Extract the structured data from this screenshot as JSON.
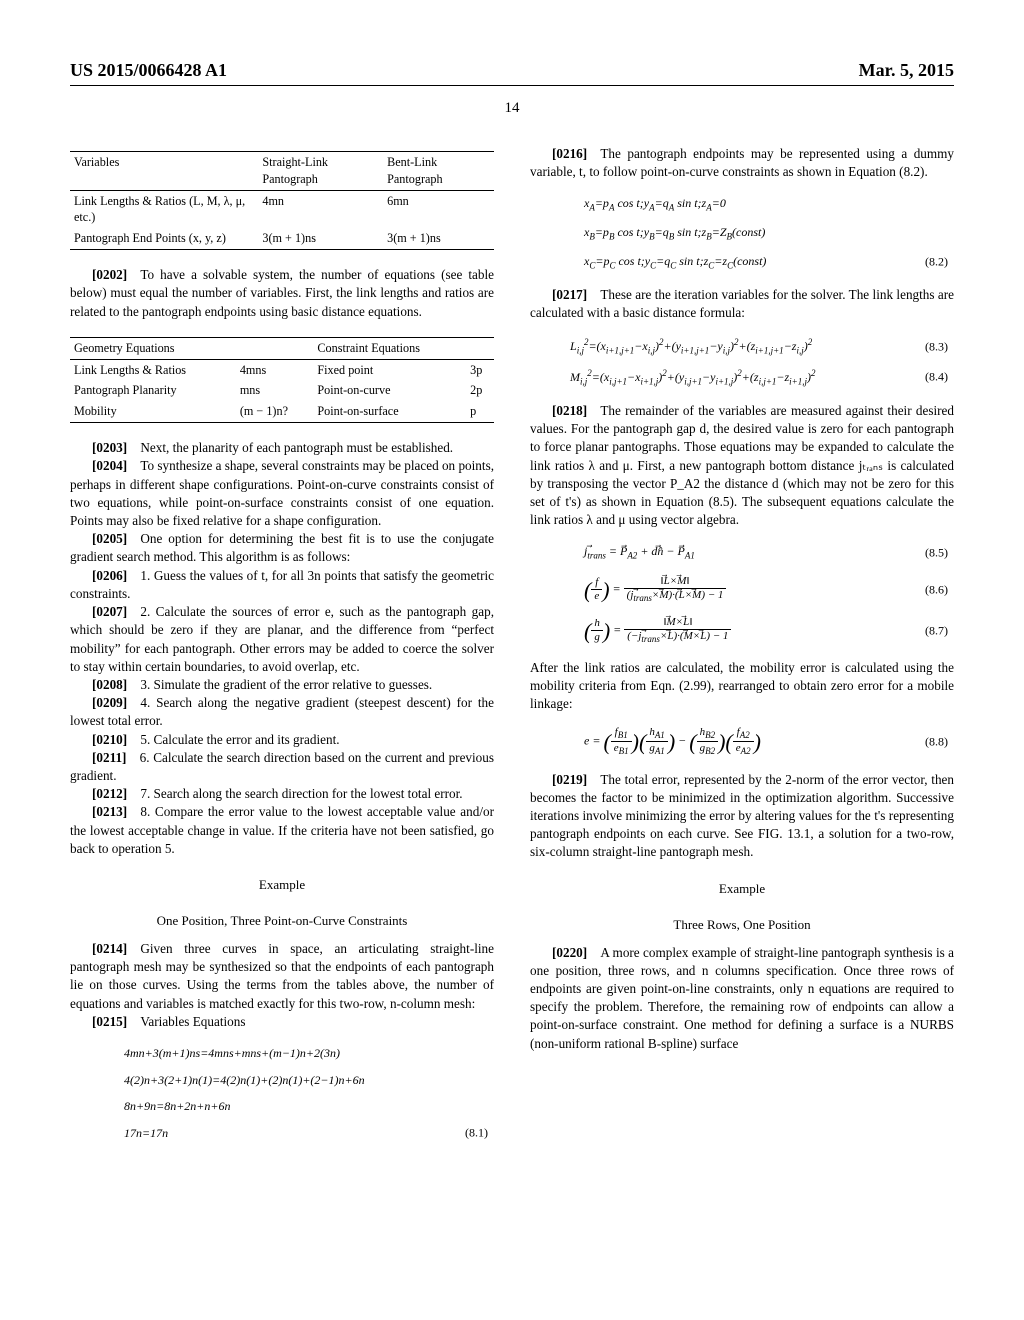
{
  "header": {
    "left": "US 2015/0066428 A1",
    "right": "Mar. 5, 2015"
  },
  "page_number": "14",
  "table1": {
    "head": [
      "Variables",
      "Straight-Link Pantograph",
      "Bent-Link Pantograph"
    ],
    "rows": [
      [
        "Link Lengths & Ratios (L, M, λ, μ, etc.)",
        "4mn",
        "6mn"
      ],
      [
        "Pantograph End Points (x, y, z)",
        "3(m + 1)ns",
        "3(m + 1)ns"
      ]
    ]
  },
  "p0202": "[0202] To have a solvable system, the number of equations (see table below) must equal the number of variables. First, the link lengths and ratios are related to the pantograph endpoints using basic distance equations.",
  "table2": {
    "head": [
      "Geometry Equations",
      "",
      "Constraint Equations",
      ""
    ],
    "rows": [
      [
        "Link Lengths & Ratios",
        "4mns",
        "Fixed point",
        "3p"
      ],
      [
        "Pantograph Planarity",
        "mns",
        "Point-on-curve",
        "2p"
      ],
      [
        "Mobility",
        "(m − 1)n?",
        "Point-on-surface",
        "p"
      ]
    ]
  },
  "p0203": "[0203] Next, the planarity of each pantograph must be established.",
  "p0204": "[0204] To synthesize a shape, several constraints may be placed on points, perhaps in different shape configurations. Point-on-curve constraints consist of two equations, while point-on-surface constraints consist of one equation. Points may also be fixed relative for a shape configuration.",
  "p0205": "[0205] One option for determining the best fit is to use the conjugate gradient search method. This algorithm is as follows:",
  "p0206": "[0206] 1. Guess the values of t, for all 3n points that satisfy the geometric constraints.",
  "p0207": "[0207] 2. Calculate the sources of error e, such as the pantograph gap, which should be zero if they are planar, and the difference from “perfect mobility” for each pantograph. Other errors may be added to coerce the solver to stay within certain boundaries, to avoid overlap, etc.",
  "p0208": "[0208] 3. Simulate the gradient of the error relative to guesses.",
  "p0209": "[0209] 4. Search along the negative gradient (steepest descent) for the lowest total error.",
  "p0210": "[0210] 5. Calculate the error and its gradient.",
  "p0211": "[0211] 6. Calculate the search direction based on the current and previous gradient.",
  "p0212": "[0212] 7. Search along the search direction for the lowest total error.",
  "p0213": "[0213] 8. Compare the error value to the lowest acceptable value and/or the lowest acceptable change in value. If the criteria have not been satisfied, go back to operation 5.",
  "exh1": "Example",
  "exh2": "One Position, Three Point-on-Curve Constraints",
  "p0214": "[0214] Given three curves in space, an articulating straight-line pantograph mesh may be synthesized so that the endpoints of each pantograph lie on those curves. Using the terms from the tables above, the number of equations and variables is matched exactly for this two-row, n-column mesh:",
  "p0215": "[0215] Variables Equations",
  "eq81_1": "4mn+3(m+1)ns=4mns+mns+(m−1)n+2(3n)",
  "eq81_2": "4(2)n+3(2+1)n(1)=4(2)n(1)+(2)n(1)+(2−1)n+6n",
  "eq81_3": "8n+9n=8n+2n+n+6n",
  "eq81_4": "17n=17n",
  "eq81_num": "(8.1)",
  "p0216": "[0216] The pantograph endpoints may be represented using a dummy variable, t, to follow point-on-curve constraints as shown in Equation (8.2).",
  "eq82_num": "(8.2)",
  "p0217": "[0217] These are the iteration variables for the solver. The link lengths are calculated with a basic distance formula:",
  "eq83_num": "(8.3)",
  "eq84_num": "(8.4)",
  "p0218": "[0218] The remainder of the variables are measured against their desired values. For the pantograph gap d, the desired value is zero for each pantograph to force planar pantographs. Those equations may be expanded to calculate the link ratios λ and μ. First, a new pantograph bottom distance jₜᵣₐₙₛ is calculated by transposing the vector P_A2 the distance d (which may not be zero for this set of t's) as shown in Equation (8.5). The subsequent equations calculate the link ratios λ and μ using vector algebra.",
  "eq85_num": "(8.5)",
  "eq86_num": "(8.6)",
  "eq87_num": "(8.7)",
  "p0218b": "After the link ratios are calculated, the mobility error is calculated using the mobility criteria from Eqn. (2.99), rearranged to obtain zero error for a mobile linkage:",
  "eq88_num": "(8.8)",
  "p0219": "[0219] The total error, represented by the 2-norm of the error vector, then becomes the factor to be minimized in the optimization algorithm. Successive iterations involve minimizing the error by altering values for the t's representing pantograph endpoints on each curve. See FIG. 13.1, a solution for a two-row, six-column straight-line pantograph mesh.",
  "exh3": "Example",
  "exh4": "Three Rows, One Position",
  "p0220": "[0220] A more complex example of straight-line pantograph synthesis is a one position, three rows, and n columns specification. Once three rows of endpoints are given point-on-line constraints, only n equations are required to specify the problem. Therefore, the remaining row of endpoints can allow a point-on-surface constraint. One method for defining a surface is a NURBS (non-uniform rational B-spline) surface"
}
